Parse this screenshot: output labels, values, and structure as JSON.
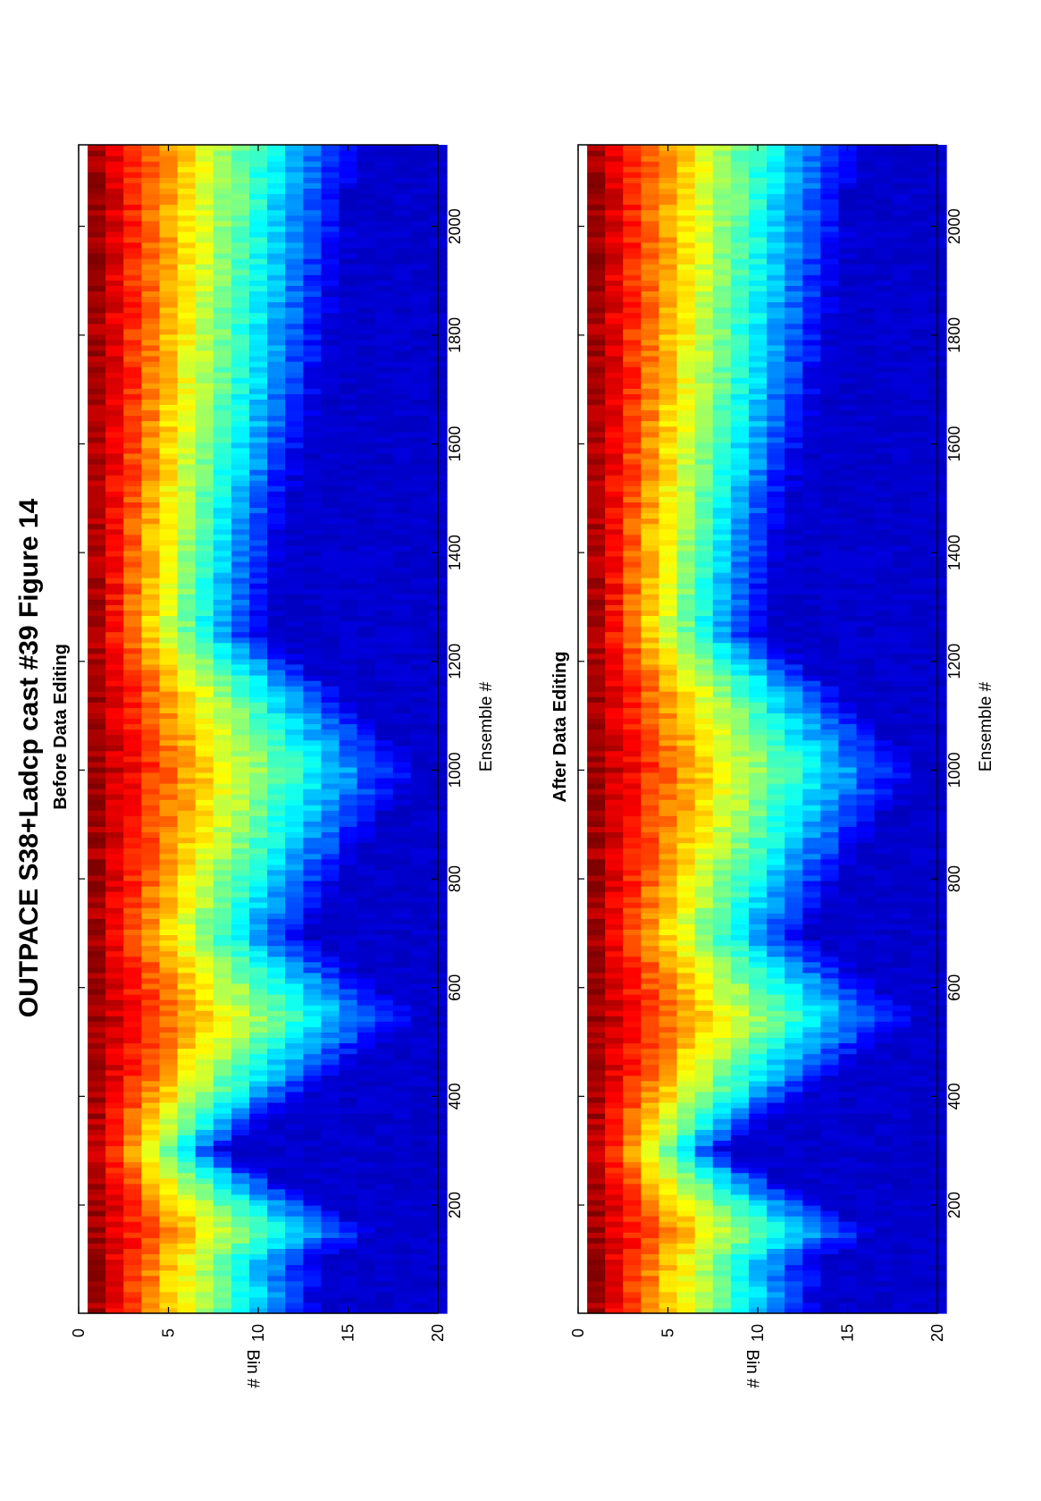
{
  "figure": {
    "title": "OUTPACE S38+Ladcp cast #39  Figure 14"
  },
  "panels": [
    {
      "subtitle": "Before Data Editing",
      "xlabel": "Ensemble #",
      "ylabel": "Bin #"
    },
    {
      "subtitle": "After Data Editing",
      "xlabel": "Ensemble #",
      "ylabel": "Bin #"
    }
  ],
  "colormap": [
    "#00008f",
    "#0000ff",
    "#0080ff",
    "#00ffff",
    "#80ff80",
    "#ffff00",
    "#ff8000",
    "#ff0000",
    "#800000"
  ],
  "chart_data": [
    {
      "type": "heatmap",
      "title": "Before Data Editing",
      "xlabel": "Ensemble #",
      "ylabel": "Bin #",
      "xlim": [
        1,
        2150
      ],
      "ylim": [
        0,
        20
      ],
      "xticks": [
        200,
        400,
        600,
        800,
        1000,
        1200,
        1400,
        1600,
        1800,
        2000
      ],
      "yticks": [
        0,
        5,
        10,
        15,
        20
      ],
      "grid": false,
      "description_values": {
        "x_profile_ensembles": [
          1,
          100,
          150,
          300,
          450,
          550,
          700,
          1000,
          1150,
          1250,
          1450,
          1700,
          2150
        ],
        "penetration_bins": [
          12,
          12,
          15,
          7,
          13,
          17,
          11,
          17,
          13,
          9,
          10,
          12,
          14
        ]
      }
    },
    {
      "type": "heatmap",
      "title": "After Data Editing",
      "xlabel": "Ensemble #",
      "ylabel": "Bin #",
      "xlim": [
        1,
        2150
      ],
      "ylim": [
        0,
        20
      ],
      "xticks": [
        200,
        400,
        600,
        800,
        1000,
        1200,
        1400,
        1600,
        1800,
        2000
      ],
      "yticks": [
        0,
        5,
        10,
        15,
        20
      ],
      "grid": false,
      "description_values": {
        "x_profile_ensembles": [
          1,
          100,
          150,
          300,
          450,
          550,
          700,
          1000,
          1150,
          1250,
          1450,
          1700,
          2150
        ],
        "penetration_bins": [
          12,
          12,
          15,
          7,
          13,
          17,
          11,
          17,
          13,
          9,
          10,
          12,
          14
        ]
      }
    }
  ]
}
